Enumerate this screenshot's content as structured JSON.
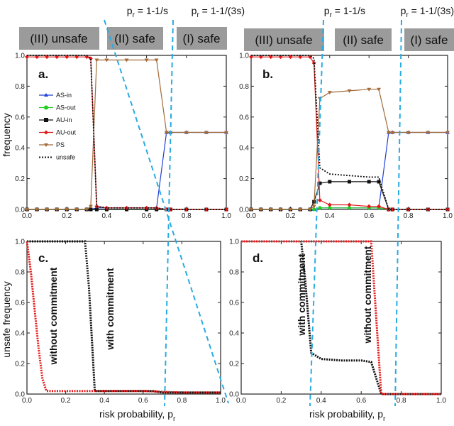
{
  "header": {
    "threshold1": "p",
    "threshold1_sub": "r",
    "threshold1_rest": " = 1-1/s",
    "threshold2": "p",
    "threshold2_sub": "r",
    "threshold2_rest": " = 1-1/(3s)"
  },
  "regions": {
    "unsafe": "(III) unsafe",
    "safe2": "(II) safe",
    "safe1": "(I) safe"
  },
  "colors": {
    "region_box": "#9b9b9b",
    "dashed_line": "#29abe2",
    "AS_in": "#1f3fd6",
    "AS_out": "#22cc22",
    "AU_in": "#111111",
    "AU_out": "#e01818",
    "PS": "#a26b3a",
    "unsafe": "#111111",
    "with_commitment": "#111111",
    "without_commitment": "#e41e1e"
  },
  "axes": {
    "ylabel_top": "frequency",
    "ylabel_bottom": "unsafe frequency",
    "xlabel": "risk probability,  p",
    "xlabel_sub": "r",
    "xticks": [
      "0.0",
      "0.2",
      "0.4",
      "0.6",
      "0.8",
      "1.0"
    ],
    "yticks": [
      "0.0",
      "0.2",
      "0.4",
      "0.6",
      "0.8",
      "1.0"
    ]
  },
  "legend": [
    "AS-in",
    "AS-out",
    "AU-in",
    "AU-out",
    "PS",
    "unsafe"
  ],
  "annotations": {
    "with": "with commitment",
    "without": "without commitment"
  },
  "chart_data": [
    {
      "panel": "a.",
      "type": "line",
      "xlim": [
        0,
        1
      ],
      "ylim": [
        0,
        1
      ],
      "thresholds": [
        0.333,
        0.778
      ],
      "x": [
        0,
        0.05,
        0.1,
        0.15,
        0.2,
        0.25,
        0.3,
        0.32,
        0.35,
        0.4,
        0.5,
        0.6,
        0.65,
        0.7,
        0.72,
        0.8,
        0.9,
        1.0
      ],
      "series": [
        {
          "name": "AS-in",
          "values": [
            0,
            0,
            0,
            0,
            0,
            0,
            0,
            0,
            0.01,
            0.01,
            0.01,
            0.01,
            0.01,
            0.5,
            0.5,
            0.5,
            0.5,
            0.5
          ]
        },
        {
          "name": "AS-out",
          "values": [
            0,
            0,
            0,
            0,
            0,
            0,
            0,
            0,
            0,
            0,
            0,
            0,
            0,
            0,
            0,
            0,
            0,
            0
          ]
        },
        {
          "name": "AU-in",
          "values": [
            0,
            0,
            0,
            0,
            0,
            0,
            0,
            0,
            0,
            0,
            0,
            0,
            0,
            0,
            0,
            0,
            0,
            0
          ]
        },
        {
          "name": "AU-out",
          "values": [
            0.99,
            0.99,
            0.99,
            0.99,
            0.99,
            0.99,
            0.99,
            0.98,
            0.02,
            0.01,
            0.01,
            0.01,
            0.01,
            0,
            0,
            0,
            0,
            0
          ]
        },
        {
          "name": "PS",
          "values": [
            0,
            0,
            0,
            0,
            0,
            0,
            0,
            0.02,
            0.97,
            0.97,
            0.97,
            0.97,
            0.97,
            0.5,
            0.5,
            0.5,
            0.5,
            0.5
          ]
        },
        {
          "name": "unsafe",
          "values": [
            1,
            1,
            1,
            1,
            1,
            1,
            1,
            0.98,
            0.02,
            0.01,
            0.01,
            0.01,
            0.01,
            0,
            0,
            0,
            0,
            0
          ]
        }
      ]
    },
    {
      "panel": "b.",
      "type": "line",
      "xlim": [
        0,
        1
      ],
      "ylim": [
        0,
        1
      ],
      "thresholds": [
        0.333,
        0.778
      ],
      "x": [
        0,
        0.05,
        0.1,
        0.15,
        0.2,
        0.25,
        0.3,
        0.32,
        0.35,
        0.4,
        0.5,
        0.6,
        0.65,
        0.7,
        0.72,
        0.8,
        0.9,
        1.0
      ],
      "series": [
        {
          "name": "AS-in",
          "values": [
            0,
            0,
            0,
            0,
            0,
            0,
            0,
            0,
            0.01,
            0.01,
            0.01,
            0.01,
            0.01,
            0.5,
            0.5,
            0.5,
            0.5,
            0.5
          ]
        },
        {
          "name": "AS-out",
          "values": [
            0,
            0,
            0,
            0,
            0,
            0,
            0,
            0,
            0.01,
            0.01,
            0.01,
            0.01,
            0.01,
            0,
            0,
            0,
            0,
            0
          ]
        },
        {
          "name": "AU-in",
          "values": [
            0,
            0,
            0,
            0,
            0,
            0,
            0,
            0.05,
            0.17,
            0.18,
            0.18,
            0.18,
            0.18,
            0,
            0,
            0,
            0,
            0
          ]
        },
        {
          "name": "AU-out",
          "values": [
            0.99,
            0.99,
            0.99,
            0.99,
            0.99,
            0.99,
            0.99,
            0.95,
            0.06,
            0.03,
            0.03,
            0.02,
            0.02,
            0,
            0,
            0,
            0,
            0
          ]
        },
        {
          "name": "PS",
          "values": [
            0,
            0,
            0,
            0,
            0,
            0,
            0,
            0.02,
            0.72,
            0.76,
            0.77,
            0.78,
            0.78,
            0.5,
            0.5,
            0.5,
            0.5,
            0.5
          ]
        },
        {
          "name": "unsafe",
          "values": [
            1,
            1,
            1,
            1,
            1,
            1,
            1,
            0.98,
            0.27,
            0.23,
            0.22,
            0.21,
            0.21,
            0,
            0,
            0,
            0,
            0
          ]
        }
      ]
    },
    {
      "panel": "c.",
      "type": "line",
      "xlim": [
        0,
        1
      ],
      "ylim": [
        0,
        1
      ],
      "thresholds": [
        0.333,
        0.778
      ],
      "series": [
        {
          "name": "with commitment",
          "x": [
            0,
            0.1,
            0.2,
            0.3,
            0.32,
            0.35,
            0.4,
            0.5,
            0.6,
            0.65,
            0.7,
            0.8,
            0.9,
            1.0
          ],
          "values": [
            1,
            1,
            1,
            1,
            0.7,
            0.02,
            0.02,
            0.02,
            0.02,
            0.02,
            0.01,
            0.01,
            0.01,
            0.01
          ]
        },
        {
          "name": "without commitment",
          "x": [
            0,
            0.02,
            0.04,
            0.06,
            0.08,
            0.1,
            0.2,
            0.4,
            0.6,
            0.8,
            1.0
          ],
          "values": [
            1,
            0.8,
            0.55,
            0.3,
            0.1,
            0.02,
            0.02,
            0.02,
            0.02,
            0.01,
            0.01
          ]
        }
      ]
    },
    {
      "panel": "d.",
      "type": "line",
      "xlim": [
        0,
        1
      ],
      "ylim": [
        0,
        1
      ],
      "thresholds": [
        0.333,
        0.778
      ],
      "series": [
        {
          "name": "with commitment",
          "x": [
            0,
            0.1,
            0.2,
            0.3,
            0.32,
            0.35,
            0.4,
            0.5,
            0.6,
            0.65,
            0.7,
            0.8,
            0.9,
            1.0
          ],
          "values": [
            1,
            1,
            1,
            1,
            0.75,
            0.27,
            0.23,
            0.22,
            0.22,
            0.21,
            0,
            0,
            0,
            0
          ]
        },
        {
          "name": "without commitment",
          "x": [
            0,
            0.1,
            0.2,
            0.3,
            0.4,
            0.5,
            0.6,
            0.65,
            0.7,
            0.8,
            0.9,
            1.0
          ],
          "values": [
            1,
            1,
            1,
            1,
            1,
            1,
            1,
            1,
            0,
            0,
            0,
            0
          ]
        }
      ]
    }
  ]
}
